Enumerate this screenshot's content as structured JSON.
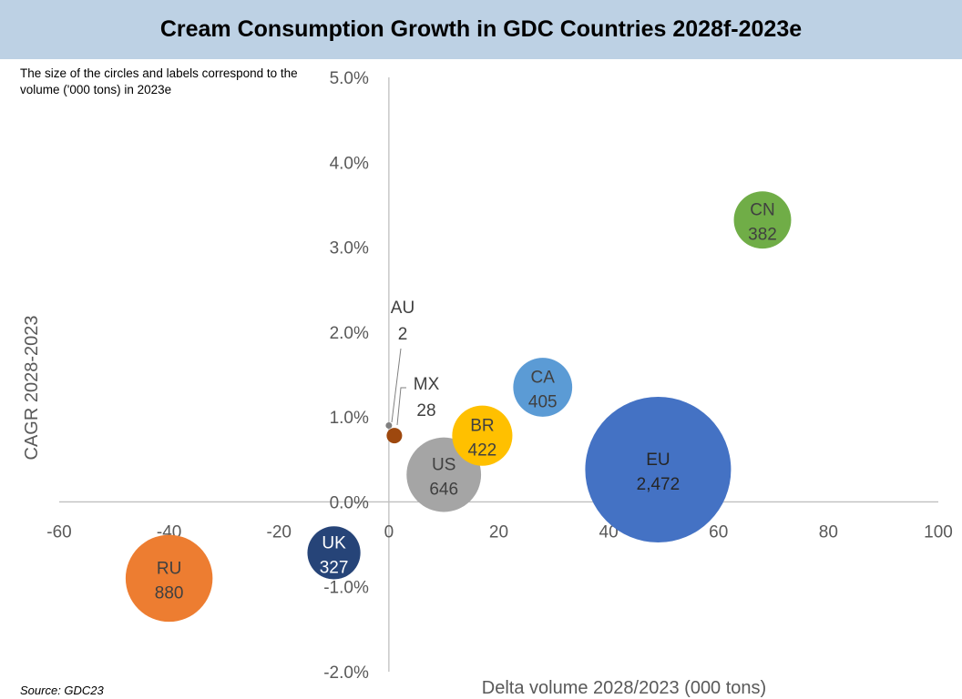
{
  "title": "Cream Consumption Growth in GDC Countries 2028f-2023e",
  "note": "The size of the circles and labels correspond to the volume ('000 tons) in 2023e",
  "source": "Source: GDC23",
  "chart_data": {
    "type": "bubble",
    "xlabel": "Delta volume 2028/2023 (000 tons)",
    "ylabel": "CAGR 2028-2023",
    "xlim": [
      -60,
      100
    ],
    "ylim": [
      -2.0,
      5.0
    ],
    "x_ticks": [
      "-60",
      "-40",
      "-20",
      "0",
      "20",
      "40",
      "60",
      "80",
      "100"
    ],
    "y_ticks": [
      "5.0%",
      "4.0%",
      "3.0%",
      "2.0%",
      "1.0%",
      "0.0%",
      "-1.0%",
      "-2.0%"
    ],
    "grid": false,
    "points": [
      {
        "name": "RU",
        "label": "880",
        "x": -40,
        "y": -0.9,
        "volume": 880,
        "color": "#ed7d31"
      },
      {
        "name": "UK",
        "label": "327",
        "x": -10,
        "y": -0.6,
        "volume": 327,
        "color": "#264478"
      },
      {
        "name": "AU",
        "label": "2",
        "x": 0,
        "y": 0.9,
        "volume": 2,
        "color": "#7f7f7f"
      },
      {
        "name": "MX",
        "label": "28",
        "x": 1,
        "y": 0.78,
        "volume": 28,
        "color": "#9e480e"
      },
      {
        "name": "US",
        "label": "646",
        "x": 10,
        "y": 0.32,
        "volume": 646,
        "color": "#a5a5a5"
      },
      {
        "name": "BR",
        "label": "422",
        "x": 17,
        "y": 0.78,
        "volume": 422,
        "color": "#ffc000"
      },
      {
        "name": "CA",
        "label": "405",
        "x": 28,
        "y": 1.35,
        "volume": 405,
        "color": "#5b9bd5"
      },
      {
        "name": "EU",
        "label": "2,472",
        "x": 49,
        "y": 0.38,
        "volume": 2472,
        "color": "#4472c4"
      },
      {
        "name": "CN",
        "label": "382",
        "x": 68,
        "y": 3.32,
        "volume": 382,
        "color": "#70ad47"
      }
    ]
  }
}
